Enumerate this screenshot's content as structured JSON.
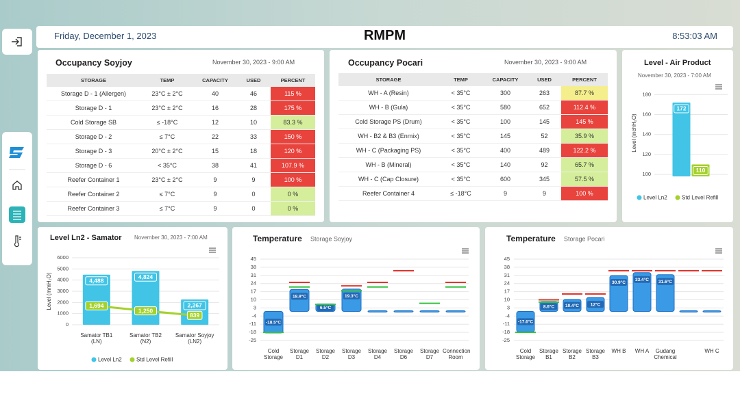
{
  "header": {
    "date": "Friday, December 1, 2023",
    "title": "RMPM",
    "time": "8:53:03 AM"
  },
  "occupancy_soyjoy": {
    "title": "Occupancy Soyjoy",
    "timestamp": "November 30, 2023 - 9:00 AM",
    "columns": [
      "STORAGE",
      "TEMP",
      "CAPACITY",
      "USED",
      "PERCENT"
    ],
    "rows": [
      [
        "Storage D - 1 (Allergen)",
        "23°C ± 2°C",
        40,
        46,
        "115 %"
      ],
      [
        "Storage D - 1",
        "23°C ± 2°C",
        16,
        28,
        "175 %"
      ],
      [
        "Cold Storage SB",
        "≤ -18°C",
        12,
        10,
        "83.3 %"
      ],
      [
        "Storage D - 2",
        "≤ 7°C",
        22,
        33,
        "150 %"
      ],
      [
        "Storage D - 3",
        "20°C ± 2°C",
        15,
        18,
        "120 %"
      ],
      [
        "Storage D - 6",
        "< 35°C",
        38,
        41,
        "107.9 %"
      ],
      [
        "Reefer Container 1",
        "23°C ± 2°C",
        9,
        9,
        "100 %"
      ],
      [
        "Reefer Container 2",
        "≤ 7°C",
        9,
        0,
        "0 %"
      ],
      [
        "Reefer Container 3",
        "≤ 7°C",
        9,
        0,
        "0 %"
      ]
    ],
    "percent_colors": [
      "#e8433d",
      "#e8433d",
      "#d5ee9b",
      "#e8433d",
      "#e8433d",
      "#e8433d",
      "#e8433d",
      "#d5ee9b",
      "#d5ee9b"
    ]
  },
  "occupancy_pocari": {
    "title": "Occupancy Pocari",
    "timestamp": "November 30, 2023 - 9:00 AM",
    "columns": [
      "STORAGE",
      "TEMP",
      "CAPACITY",
      "USED",
      "PERCENT"
    ],
    "rows": [
      [
        "WH - A (Resin)",
        "< 35°C",
        300,
        263,
        "87.7 %"
      ],
      [
        "WH - B (Gula)",
        "< 35°C",
        580,
        652,
        "112.4 %"
      ],
      [
        "Cold Storage PS (Drum)",
        "< 35°C",
        100,
        145,
        "145 %"
      ],
      [
        "WH - B2 & B3 (Enmix)",
        "< 35°C",
        145,
        52,
        "35.9 %"
      ],
      [
        "WH - C (Packaging PS)",
        "< 35°C",
        400,
        489,
        "122.2 %"
      ],
      [
        "WH - B (Mineral)",
        "< 35°C",
        140,
        92,
        "65.7 %"
      ],
      [
        "WH - C (Cap Closure)",
        "< 35°C",
        600,
        345,
        "57.5 %"
      ],
      [
        "Reefer Container 4",
        "≤ -18°C",
        9,
        9,
        "100 %"
      ]
    ],
    "percent_colors": [
      "#f5ee8c",
      "#e8433d",
      "#e8433d",
      "#d5ee9b",
      "#e8433d",
      "#d5ee9b",
      "#d5ee9b",
      "#e8433d"
    ]
  },
  "chart_data": [
    {
      "type": "bar",
      "title": "Level - Air Product",
      "subtitle": "November 30, 2023 - 7:00 AM",
      "ylabel": "Level (inchH₂O)",
      "categories": [
        null
      ],
      "series": [
        {
          "name": "Level Ln2",
          "color": "#41c4e6",
          "values": [
            172
          ]
        },
        {
          "name": "Std Level Refill",
          "color": "#a4d12c",
          "values": [
            110
          ]
        }
      ],
      "ylim": [
        98,
        185
      ],
      "yticks": [
        100,
        120,
        140,
        160,
        180
      ],
      "grid": true,
      "legend": "bottom"
    },
    {
      "type": "combo",
      "title": "Level Ln2 - Samator",
      "subtitle": "November 30, 2023 - 7:00 AM",
      "ylabel": "Level (mmH₂O)",
      "categories": [
        "Samator TB1 (LN)",
        "Samator TB2 (N2)",
        "Samator Soyjoy (LN2)"
      ],
      "series": [
        {
          "name": "Level Ln2",
          "color": "#41c4e6",
          "mark": "bar",
          "values": [
            4488,
            4824,
            2267
          ],
          "value_labels": [
            "4,488",
            "4,824",
            "2,267"
          ]
        },
        {
          "name": "Std Level Refill",
          "color": "#a4d12c",
          "mark": "line",
          "values": [
            1694,
            1250,
            839
          ],
          "value_labels": [
            "1,694",
            "1,250",
            "839"
          ]
        }
      ],
      "ylim": [
        0,
        6000
      ],
      "yticks": [
        0,
        1000,
        2000,
        3000,
        4000,
        5000,
        6000
      ],
      "grid": true,
      "legend": "bottom"
    },
    {
      "type": "bar",
      "title": "Temperature",
      "subtitle": "Storage Soyjoy",
      "categories": [
        "Cold Storage",
        "Storage D1",
        "Storage D2",
        "Storage D3",
        "Storage D4",
        "Storage D6",
        "Storage D7",
        "Connection Room"
      ],
      "series": [
        {
          "color": "#3b9ae6",
          "mark": "bar",
          "values": [
            -18.5,
            18.9,
            6.5,
            19.3,
            0,
            0,
            0,
            0
          ],
          "value_labels": [
            "-18.5°C",
            "18.9°C",
            "6.5°C",
            "19.3°C",
            null,
            null,
            null,
            null
          ]
        },
        {
          "color": "#e2342d",
          "mark": "dash",
          "values": [
            null,
            25,
            null,
            22,
            25,
            35,
            null,
            25
          ]
        },
        {
          "color": "#35c23f",
          "mark": "dash",
          "values": [
            -18,
            21,
            6,
            18,
            21,
            null,
            7,
            21
          ]
        }
      ],
      "ylim": [
        -25,
        45
      ],
      "yticks": [
        -25,
        -18,
        -11,
        -4,
        3,
        10,
        17,
        24,
        31,
        38,
        45
      ],
      "grid": true
    },
    {
      "type": "bar",
      "title": "Temperature",
      "subtitle": "Storage Pocari",
      "categories": [
        "Cold Storage",
        "Storage B1",
        "Storage B2",
        "Storage B3",
        "WH B",
        "WH A",
        "Gudang Chemical",
        null,
        "WH C"
      ],
      "series": [
        {
          "color": "#3b9ae6",
          "mark": "bar",
          "values": [
            -17.6,
            8.6,
            10.4,
            12,
            30.9,
            33.4,
            31.6,
            0,
            0
          ],
          "value_labels": [
            "-17.6°C",
            "8.6°C",
            "10.4°C",
            "12°C",
            "30.9°C",
            "33.4°C",
            "31.6°C",
            null,
            null
          ]
        },
        {
          "color": "#e2342d",
          "mark": "dash",
          "values": [
            null,
            10,
            15,
            15,
            35,
            35,
            35,
            35,
            35
          ]
        },
        {
          "color": "#35c23f",
          "mark": "dash",
          "values": [
            -18,
            8,
            null,
            null,
            null,
            null,
            null,
            null,
            null
          ]
        }
      ],
      "ylim": [
        -25,
        45
      ],
      "yticks": [
        -25,
        -18,
        -11,
        -4,
        3,
        10,
        17,
        24,
        31,
        38,
        45
      ],
      "grid": true
    }
  ]
}
